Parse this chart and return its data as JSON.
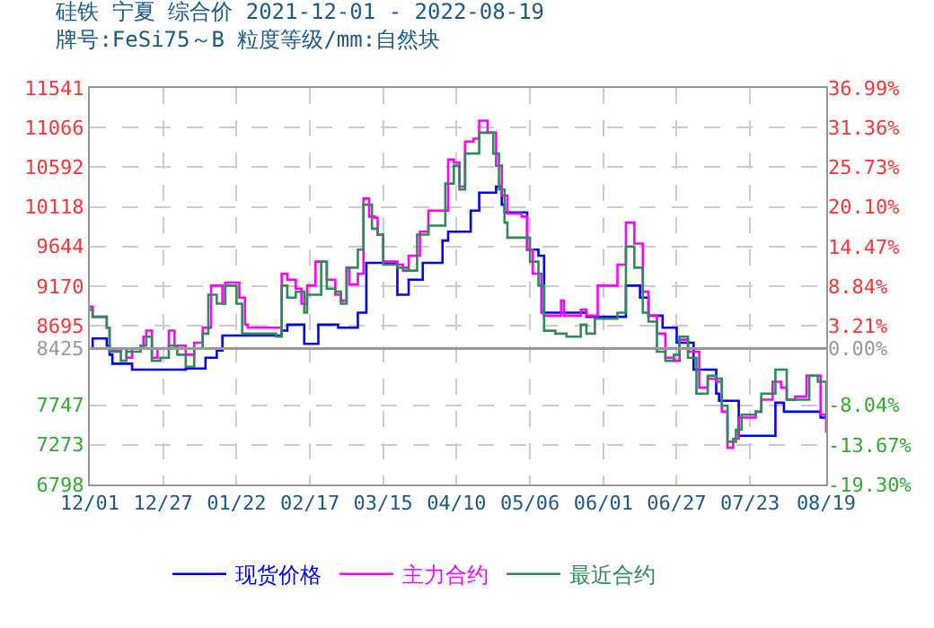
{
  "chart_data": {
    "type": "step",
    "title": "硅铁 宁夏 综合价 2021-12-01 - 2022-08-19",
    "subtitle": "牌号:FeSi75～B 粒度等级/mm:自然块",
    "xlim": [
      "2021-12-01",
      "2022-08-19"
    ],
    "xticks": [
      {
        "value": "2021-12-01",
        "label": "12/01"
      },
      {
        "value": "2021-12-27",
        "label": "12/27"
      },
      {
        "value": "2022-01-22",
        "label": "01/22"
      },
      {
        "value": "2022-02-17",
        "label": "02/17"
      },
      {
        "value": "2022-03-15",
        "label": "03/15"
      },
      {
        "value": "2022-04-10",
        "label": "04/10"
      },
      {
        "value": "2022-05-06",
        "label": "05/06"
      },
      {
        "value": "2022-06-01",
        "label": "06/01"
      },
      {
        "value": "2022-06-27",
        "label": "06/27"
      },
      {
        "value": "2022-07-23",
        "label": "07/23"
      },
      {
        "value": "2022-08-19",
        "label": "08/19"
      }
    ],
    "ylim": [
      6798,
      11541
    ],
    "yticks": [
      6798,
      7273,
      7747,
      8425,
      8695,
      9170,
      9644,
      10118,
      10592,
      11066,
      11541
    ],
    "y2lim": [
      -19.3,
      36.99
    ],
    "y2ticks": [
      {
        "value": -19.3,
        "label": "-19.30%"
      },
      {
        "value": -13.67,
        "label": "-13.67%"
      },
      {
        "value": -8.04,
        "label": "-8.04%"
      },
      {
        "value": 0,
        "label": "0.00%"
      },
      {
        "value": 3.21,
        "label": "3.21%"
      },
      {
        "value": 8.84,
        "label": "8.84%"
      },
      {
        "value": 14.47,
        "label": "14.47%"
      },
      {
        "value": 20.1,
        "label": "20.10%"
      },
      {
        "value": 25.73,
        "label": "25.73%"
      },
      {
        "value": 31.36,
        "label": "31.36%"
      },
      {
        "value": 36.99,
        "label": "36.99%"
      }
    ],
    "ref_lines": [
      {
        "axis": "y",
        "value": 8425,
        "color": "#999999"
      }
    ],
    "grid": true,
    "legend": "bottom",
    "line_style": "solid",
    "marker": "none",
    "series": [
      {
        "name": "现货价格",
        "color": "#0000ff",
        "x": [
          "2021-12-01",
          "2021-12-02",
          "2021-12-07",
          "2021-12-08",
          "2021-12-09",
          "2021-12-16",
          "2022-01-04",
          "2022-01-11",
          "2022-01-15",
          "2022-01-17",
          "2022-02-07",
          "2022-02-09",
          "2022-02-15",
          "2022-02-20",
          "2022-02-27",
          "2022-03-06",
          "2022-03-09",
          "2022-03-20",
          "2022-03-24",
          "2022-03-29",
          "2022-04-05",
          "2022-04-07",
          "2022-04-15",
          "2022-04-18",
          "2022-04-24",
          "2022-04-26",
          "2022-04-27",
          "2022-05-05",
          "2022-05-09",
          "2022-05-11",
          "2022-05-26",
          "2022-06-09",
          "2022-06-14",
          "2022-06-17",
          "2022-06-22",
          "2022-06-27",
          "2022-07-03",
          "2022-07-11",
          "2022-07-12",
          "2022-07-19",
          "2022-08-01",
          "2022-08-04",
          "2022-08-17",
          "2022-08-19"
        ],
        "values": [
          8425,
          8544,
          8458,
          8350,
          8243,
          8171,
          8185,
          8314,
          8400,
          8580,
          8638,
          8709,
          8480,
          8709,
          8673,
          8853,
          9449,
          9068,
          9248,
          9449,
          9715,
          9822,
          10074,
          10289,
          10361,
          10145,
          10052,
          9607,
          9535,
          8853,
          8803,
          9176,
          9033,
          8817,
          8673,
          8494,
          8171,
          7884,
          7798,
          7381,
          7776,
          7668,
          7597,
          7582
        ]
      },
      {
        "name": "主力合约",
        "color": "#ff00ff",
        "x": [
          "2021-12-01",
          "2021-12-02",
          "2021-12-07",
          "2021-12-08",
          "2021-12-12",
          "2021-12-14",
          "2021-12-16",
          "2021-12-20",
          "2021-12-21",
          "2021-12-23",
          "2021-12-25",
          "2021-12-29",
          "2021-12-31",
          "2022-01-04",
          "2022-01-07",
          "2022-01-10",
          "2022-01-13",
          "2022-01-17",
          "2022-01-18",
          "2022-01-23",
          "2022-01-25",
          "2022-01-26",
          "2022-02-07",
          "2022-02-09",
          "2022-02-12",
          "2022-02-14",
          "2022-02-16",
          "2022-02-19",
          "2022-02-23",
          "2022-02-26",
          "2022-02-28",
          "2022-03-02",
          "2022-03-03",
          "2022-03-06",
          "2022-03-08",
          "2022-03-10",
          "2022-03-12",
          "2022-03-13",
          "2022-03-15",
          "2022-03-20",
          "2022-03-22",
          "2022-03-24",
          "2022-03-28",
          "2022-03-31",
          "2022-04-07",
          "2022-04-09",
          "2022-04-11",
          "2022-04-13",
          "2022-04-16",
          "2022-04-18",
          "2022-04-21",
          "2022-04-24",
          "2022-04-26",
          "2022-04-28",
          "2022-05-03",
          "2022-05-05",
          "2022-05-07",
          "2022-05-10",
          "2022-05-11",
          "2022-05-17",
          "2022-05-18",
          "2022-05-24",
          "2022-05-26",
          "2022-05-30",
          "2022-06-06",
          "2022-06-09",
          "2022-06-12",
          "2022-06-15",
          "2022-06-17",
          "2022-06-20",
          "2022-06-23",
          "2022-06-26",
          "2022-06-28",
          "2022-07-01",
          "2022-07-05",
          "2022-07-08",
          "2022-07-11",
          "2022-07-13",
          "2022-07-15",
          "2022-07-17",
          "2022-07-19",
          "2022-07-25",
          "2022-07-27",
          "2022-07-31",
          "2022-08-03",
          "2022-08-05",
          "2022-08-08",
          "2022-08-12",
          "2022-08-17",
          "2022-08-19"
        ],
        "values": [
          8925,
          8803,
          8673,
          8401,
          8422,
          8314,
          8422,
          8566,
          8638,
          8314,
          8422,
          8638,
          8458,
          8350,
          8494,
          8673,
          9176,
          8961,
          9212,
          9033,
          8709,
          8673,
          9320,
          9248,
          9140,
          8961,
          9176,
          9463,
          9248,
          9068,
          8997,
          9391,
          9190,
          9320,
          10217,
          10002,
          9987,
          9786,
          9463,
          9427,
          9356,
          9535,
          9822,
          10074,
          10684,
          10648,
          10361,
          10899,
          10935,
          11150,
          11006,
          10612,
          10253,
          10038,
          10002,
          9607,
          9320,
          8853,
          8817,
          8997,
          8817,
          8889,
          8817,
          9176,
          9427,
          9930,
          9679,
          9104,
          8817,
          8602,
          8314,
          8278,
          8530,
          8386,
          7956,
          8063,
          8027,
          7668,
          7237,
          7345,
          7597,
          7668,
          7812,
          8027,
          7956,
          7812,
          7848,
          8099,
          7632,
          7416
        ]
      },
      {
        "name": "最近合约",
        "color": "#2e8b57",
        "x": [
          "2021-12-01",
          "2021-12-02",
          "2021-12-07",
          "2021-12-08",
          "2021-12-12",
          "2021-12-14",
          "2021-12-19",
          "2021-12-21",
          "2021-12-23",
          "2021-12-26",
          "2021-12-29",
          "2022-01-01",
          "2022-01-04",
          "2022-01-07",
          "2022-01-10",
          "2022-01-12",
          "2022-01-15",
          "2022-01-18",
          "2022-01-22",
          "2022-01-24",
          "2022-02-05",
          "2022-02-07",
          "2022-02-09",
          "2022-02-12",
          "2022-02-15",
          "2022-02-16",
          "2022-02-21",
          "2022-02-23",
          "2022-02-26",
          "2022-02-28",
          "2022-03-02",
          "2022-03-06",
          "2022-03-08",
          "2022-03-11",
          "2022-03-13",
          "2022-03-15",
          "2022-03-20",
          "2022-03-24",
          "2022-03-27",
          "2022-03-31",
          "2022-04-06",
          "2022-04-09",
          "2022-04-11",
          "2022-04-13",
          "2022-04-18",
          "2022-04-23",
          "2022-04-25",
          "2022-04-27",
          "2022-04-28",
          "2022-05-06",
          "2022-05-09",
          "2022-05-11",
          "2022-05-15",
          "2022-05-19",
          "2022-05-24",
          "2022-05-26",
          "2022-05-29",
          "2022-06-06",
          "2022-06-09",
          "2022-06-12",
          "2022-06-15",
          "2022-06-17",
          "2022-06-20",
          "2022-06-23",
          "2022-06-26",
          "2022-06-28",
          "2022-07-01",
          "2022-07-04",
          "2022-07-08",
          "2022-07-11",
          "2022-07-13",
          "2022-07-15",
          "2022-07-18",
          "2022-07-20",
          "2022-07-25",
          "2022-07-27",
          "2022-08-01",
          "2022-08-05",
          "2022-08-09",
          "2022-08-13",
          "2022-08-16",
          "2022-08-19"
        ],
        "values": [
          8889,
          8803,
          8673,
          8386,
          8278,
          8386,
          8458,
          8566,
          8278,
          8314,
          8458,
          8350,
          8207,
          8422,
          8602,
          9068,
          8961,
          9176,
          8961,
          8602,
          8566,
          9176,
          9033,
          9104,
          8853,
          9068,
          9463,
          9140,
          9104,
          8961,
          9391,
          9607,
          10145,
          9858,
          9786,
          9427,
          9391,
          9356,
          9786,
          9894,
          10397,
          10612,
          10325,
          10756,
          11006,
          10756,
          10325,
          9930,
          9750,
          9463,
          9176,
          8637,
          8602,
          8566,
          8709,
          8602,
          8781,
          8853,
          9643,
          9391,
          8853,
          8745,
          8386,
          8278,
          8350,
          8566,
          8314,
          7884,
          8099,
          8063,
          7740,
          7309,
          7453,
          7632,
          7668,
          7884,
          8171,
          7812,
          7812,
          8099,
          8027,
          7597
        ]
      }
    ]
  }
}
